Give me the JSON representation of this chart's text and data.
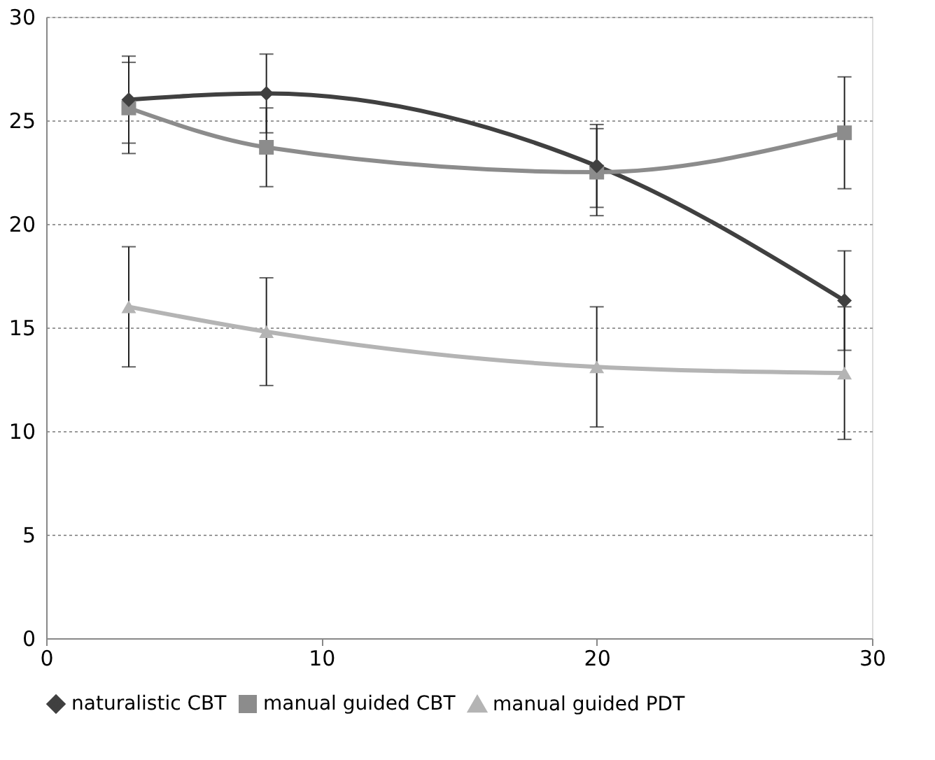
{
  "chart_data": {
    "type": "line",
    "x": [
      3,
      8,
      20,
      29
    ],
    "xlim": [
      0,
      30
    ],
    "xticks": [
      0,
      10,
      20,
      30
    ],
    "ylim": [
      0,
      30
    ],
    "yticks": [
      0,
      5,
      10,
      15,
      20,
      25,
      30
    ],
    "grid": "y",
    "legend": "bottom",
    "line_style": "solid",
    "series": [
      {
        "name": "naturalistic CBT",
        "color": "#404040",
        "marker": "diamond",
        "values": [
          26.0,
          26.3,
          22.8,
          16.3
        ],
        "errors": [
          2.1,
          1.9,
          2.0,
          2.4
        ]
      },
      {
        "name": "manual guided CBT",
        "color": "#8c8c8c",
        "marker": "square",
        "values": [
          25.6,
          23.7,
          22.5,
          24.4
        ],
        "errors": [
          2.2,
          1.9,
          2.1,
          2.7
        ]
      },
      {
        "name": "manual guided PDT",
        "color": "#b4b4b4",
        "marker": "triangle",
        "values": [
          16.0,
          14.8,
          13.1,
          12.8
        ],
        "errors": [
          2.9,
          2.6,
          2.9,
          3.2
        ]
      }
    ]
  }
}
